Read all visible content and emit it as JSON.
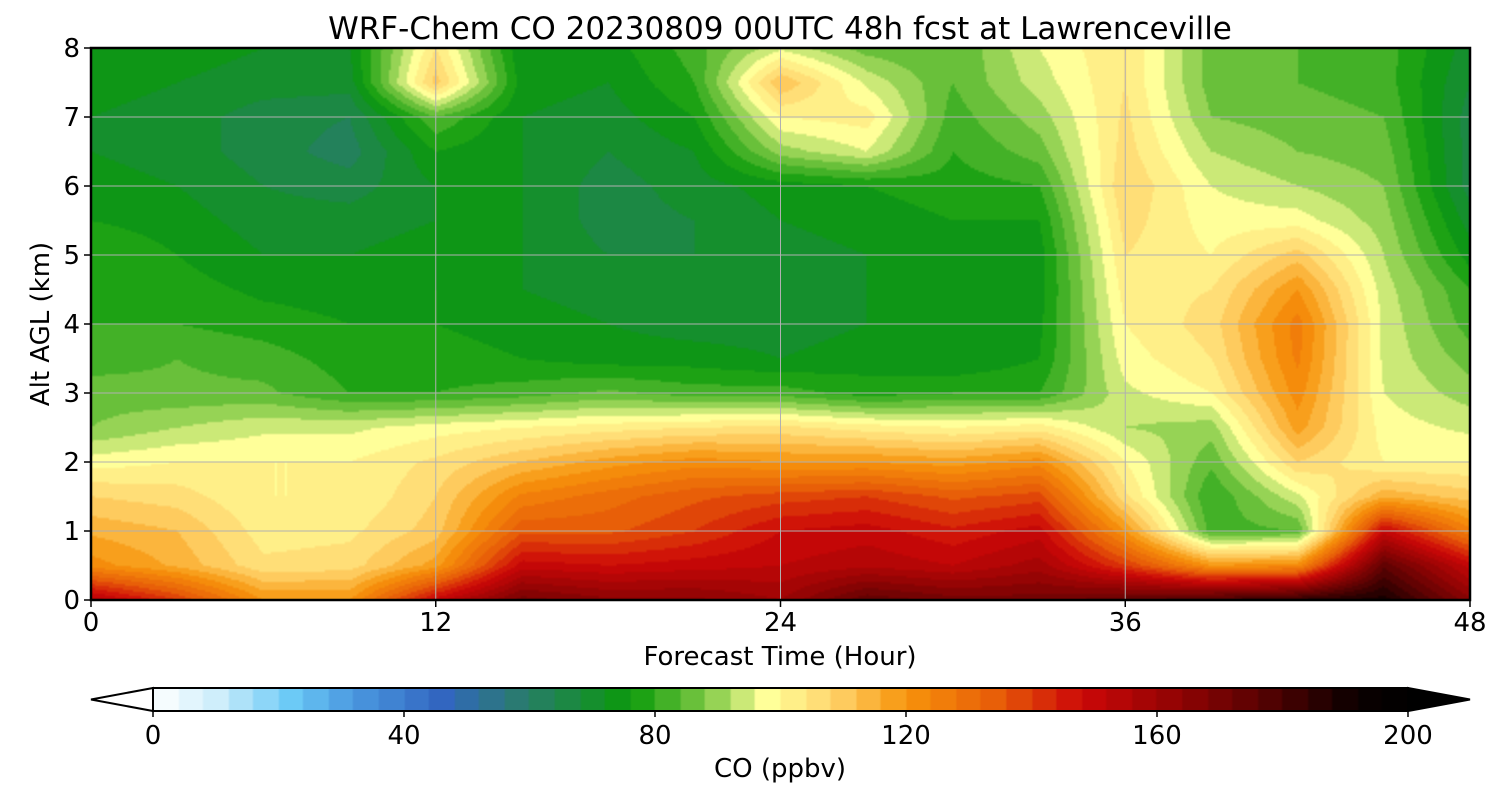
{
  "chart_data": {
    "type": "heatmap",
    "title": "WRF-Chem CO  20230809 00UTC 48h fcst at Lawrenceville",
    "xlabel": "Forecast Time (Hour)",
    "ylabel": "Alt AGL (km)",
    "xlim": [
      0,
      48
    ],
    "ylim": [
      0,
      8
    ],
    "x_ticks": [
      0,
      12,
      24,
      36,
      48
    ],
    "y_ticks": [
      0,
      1,
      2,
      3,
      4,
      5,
      6,
      7,
      8
    ],
    "grid": true,
    "colorbar": {
      "label": "CO  (ppbv)",
      "min": 0,
      "max": 200,
      "ticks": [
        0,
        40,
        80,
        120,
        160,
        200
      ],
      "extend": "both",
      "orientation": "horizontal",
      "stops": [
        {
          "value": 0,
          "color": "#ffffff"
        },
        {
          "value": 10,
          "color": "#cfeefb"
        },
        {
          "value": 22,
          "color": "#6ccaf6"
        },
        {
          "value": 32,
          "color": "#4a98e0"
        },
        {
          "value": 46,
          "color": "#3266c0"
        },
        {
          "value": 58,
          "color": "#2a7a72"
        },
        {
          "value": 76,
          "color": "#0a9a0a"
        },
        {
          "value": 88,
          "color": "#7cc844"
        },
        {
          "value": 98,
          "color": "#ffff99"
        },
        {
          "value": 108,
          "color": "#ffd66e"
        },
        {
          "value": 120,
          "color": "#f7940c"
        },
        {
          "value": 134,
          "color": "#e85f08"
        },
        {
          "value": 148,
          "color": "#cc0808"
        },
        {
          "value": 162,
          "color": "#960404"
        },
        {
          "value": 176,
          "color": "#5a0202"
        },
        {
          "value": 192,
          "color": "#0a0000"
        },
        {
          "value": 200,
          "color": "#000000"
        }
      ]
    },
    "x": [
      0,
      3,
      6,
      9,
      12,
      15,
      18,
      21,
      24,
      27,
      30,
      33,
      36,
      39,
      42,
      45,
      48
    ],
    "y": [
      0,
      0.5,
      1,
      1.5,
      2,
      2.5,
      3,
      3.5,
      4,
      4.5,
      5,
      5.5,
      6,
      6.5,
      7,
      7.5,
      8
    ],
    "z": [
      [
        155,
        140,
        120,
        120,
        150,
        170,
        165,
        165,
        160,
        175,
        170,
        170,
        175,
        180,
        185,
        190,
        165
      ],
      [
        122,
        115,
        105,
        106,
        118,
        150,
        148,
        150,
        152,
        155,
        152,
        158,
        140,
        120,
        122,
        175,
        150
      ],
      [
        115,
        112,
        102,
        103,
        110,
        135,
        135,
        140,
        148,
        150,
        145,
        150,
        120,
        82,
        84,
        150,
        125
      ],
      [
        108,
        106,
        100,
        100,
        108,
        125,
        130,
        135,
        138,
        140,
        135,
        138,
        105,
        80,
        95,
        115,
        110
      ],
      [
        98,
        100,
        100,
        100,
        105,
        112,
        118,
        122,
        120,
        120,
        118,
        122,
        100,
        85,
        108,
        100,
        100
      ],
      [
        88,
        92,
        95,
        95,
        98,
        100,
        102,
        104,
        105,
        102,
        100,
        102,
        92,
        90,
        118,
        98,
        95
      ],
      [
        86,
        85,
        85,
        80,
        80,
        82,
        85,
        82,
        82,
        78,
        80,
        80,
        95,
        100,
        122,
        96,
        90
      ],
      [
        82,
        84,
        82,
        78,
        78,
        76,
        74,
        74,
        72,
        74,
        72,
        76,
        98,
        104,
        125,
        95,
        86
      ],
      [
        80,
        80,
        78,
        76,
        76,
        74,
        72,
        70,
        70,
        72,
        72,
        75,
        100,
        106,
        126,
        95,
        82
      ],
      [
        78,
        78,
        75,
        74,
        76,
        72,
        70,
        68,
        68,
        72,
        72,
        74,
        102,
        104,
        120,
        94,
        80
      ],
      [
        80,
        76,
        72,
        72,
        74,
        72,
        68,
        68,
        70,
        72,
        74,
        74,
        104,
        100,
        110,
        92,
        74
      ],
      [
        76,
        74,
        70,
        70,
        72,
        72,
        66,
        68,
        72,
        74,
        76,
        76,
        106,
        98,
        98,
        90,
        70
      ],
      [
        74,
        72,
        68,
        66,
        72,
        72,
        66,
        70,
        74,
        76,
        78,
        80,
        108,
        96,
        92,
        88,
        66
      ],
      [
        72,
        70,
        66,
        62,
        76,
        72,
        68,
        72,
        90,
        96,
        80,
        86,
        106,
        92,
        88,
        86,
        66
      ],
      [
        72,
        70,
        66,
        64,
        84,
        72,
        70,
        76,
        100,
        102,
        82,
        90,
        105,
        88,
        86,
        84,
        66
      ],
      [
        74,
        72,
        70,
        70,
        110,
        74,
        72,
        80,
        112,
        95,
        84,
        94,
        104,
        86,
        84,
        82,
        68
      ],
      [
        76,
        74,
        72,
        72,
        104,
        72,
        74,
        82,
        95,
        86,
        84,
        96,
        104,
        86,
        84,
        82,
        70
      ]
    ]
  }
}
